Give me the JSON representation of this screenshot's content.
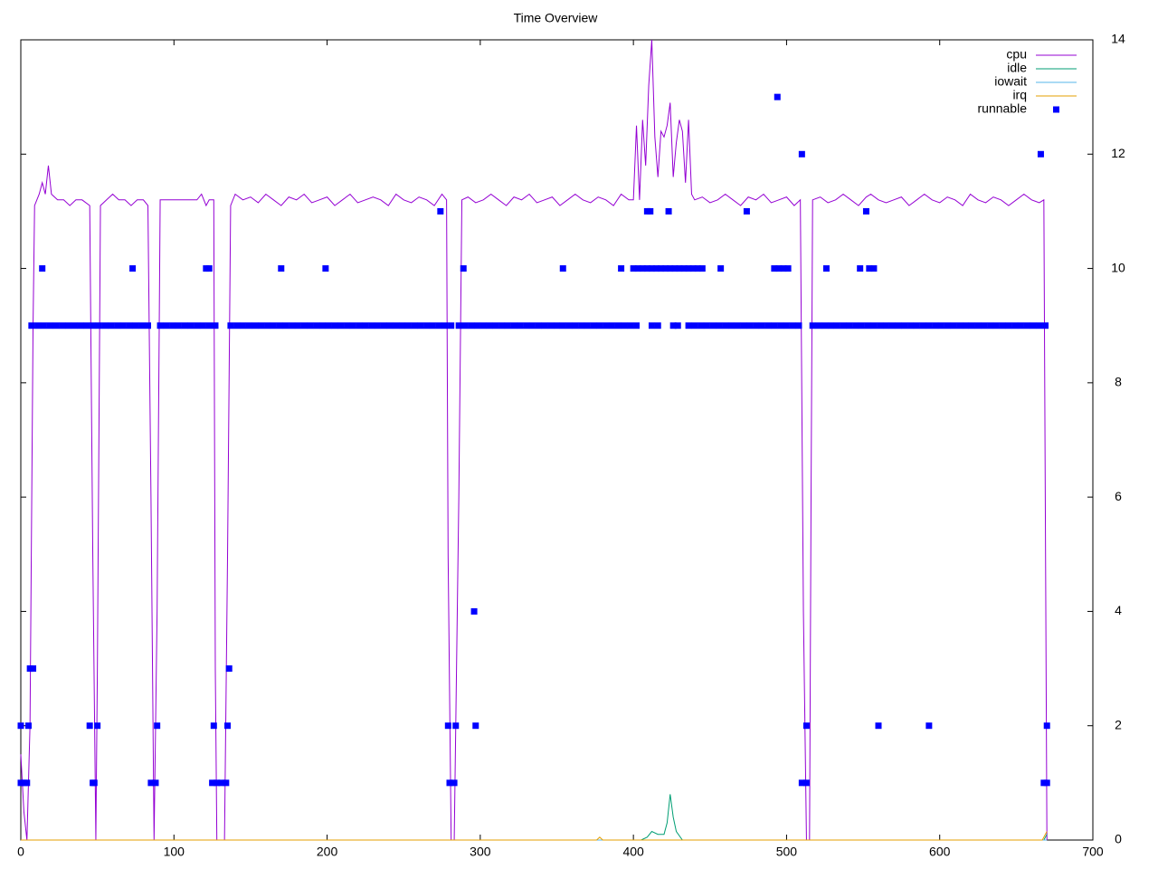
{
  "chart_data": {
    "type": "line",
    "title": "Time Overview",
    "xlim": [
      0,
      700
    ],
    "xticks": [
      0,
      100,
      200,
      300,
      400,
      500,
      600,
      700
    ],
    "ylim": [
      0,
      14
    ],
    "yticks": [
      0,
      2,
      4,
      6,
      8,
      10,
      12,
      14
    ],
    "y_axis_side": "right",
    "grid": false,
    "legend": "top right",
    "series": [
      {
        "name": "cpu",
        "color": "#9400d3",
        "x": [
          0,
          2,
          4,
          6,
          8,
          9,
          12,
          14,
          16,
          18,
          20,
          24,
          28,
          32,
          36,
          40,
          45,
          47,
          49,
          50,
          52,
          56,
          60,
          64,
          68,
          72,
          76,
          80,
          83,
          85,
          87,
          89,
          91,
          95,
          100,
          105,
          110,
          115,
          118,
          121,
          123,
          126,
          127,
          128,
          133,
          135,
          137,
          140,
          145,
          150,
          155,
          160,
          165,
          170,
          175,
          180,
          185,
          190,
          195,
          200,
          205,
          210,
          215,
          220,
          225,
          230,
          235,
          240,
          245,
          250,
          255,
          260,
          265,
          270,
          275,
          278,
          279,
          281,
          283,
          286,
          288,
          292,
          297,
          302,
          307,
          312,
          317,
          322,
          327,
          332,
          337,
          342,
          347,
          352,
          357,
          362,
          367,
          372,
          377,
          382,
          387,
          392,
          397,
          400,
          402,
          404,
          406,
          408,
          410,
          412,
          414,
          416,
          418,
          420,
          422,
          424,
          426,
          428,
          430,
          432,
          434,
          436,
          438,
          440,
          445,
          450,
          455,
          460,
          465,
          470,
          475,
          480,
          485,
          490,
          495,
          500,
          505,
          509,
          511,
          513,
          515,
          516,
          517,
          522,
          527,
          532,
          537,
          542,
          547,
          552,
          555,
          560,
          565,
          570,
          575,
          580,
          585,
          590,
          595,
          600,
          605,
          610,
          615,
          620,
          625,
          630,
          635,
          640,
          645,
          650,
          655,
          660,
          665,
          668,
          670
        ],
        "values": [
          1.5,
          0.5,
          0,
          2,
          9,
          11.1,
          11.3,
          11.5,
          11.3,
          11.8,
          11.3,
          11.2,
          11.2,
          11.1,
          11.2,
          11.2,
          11.1,
          5,
          0,
          3,
          11.1,
          11.2,
          11.3,
          11.2,
          11.2,
          11.1,
          11.2,
          11.2,
          11.1,
          6,
          0,
          4,
          11.2,
          11.2,
          11.2,
          11.2,
          11.2,
          11.2,
          11.3,
          11.1,
          11.2,
          11.2,
          3,
          0,
          0,
          5,
          11.1,
          11.3,
          11.2,
          11.25,
          11.15,
          11.3,
          11.2,
          11.1,
          11.25,
          11.2,
          11.3,
          11.15,
          11.2,
          11.25,
          11.1,
          11.2,
          11.3,
          11.15,
          11.2,
          11.25,
          11.2,
          11.1,
          11.3,
          11.2,
          11.15,
          11.25,
          11.2,
          11.1,
          11.3,
          11.2,
          5,
          0,
          0,
          6,
          11.2,
          11.25,
          11.15,
          11.2,
          11.3,
          11.2,
          11.1,
          11.25,
          11.2,
          11.3,
          11.15,
          11.2,
          11.25,
          11.1,
          11.2,
          11.3,
          11.2,
          11.15,
          11.25,
          11.2,
          11.1,
          11.3,
          11.2,
          11.2,
          12.5,
          11.2,
          12.6,
          11.8,
          13.2,
          14,
          12.3,
          11.6,
          12.4,
          12.3,
          12.5,
          12.9,
          11.6,
          12.2,
          12.6,
          12.4,
          11.5,
          12.6,
          11.3,
          11.2,
          11.25,
          11.15,
          11.2,
          11.3,
          11.2,
          11.1,
          11.25,
          11.2,
          11.3,
          11.15,
          11.2,
          11.25,
          11.1,
          11.2,
          4,
          0,
          0,
          6,
          11.2,
          11.25,
          11.15,
          11.2,
          11.3,
          11.2,
          11.1,
          11.25,
          11.3,
          11.2,
          11.15,
          11.2,
          11.25,
          11.1,
          11.2,
          11.3,
          11.2,
          11.15,
          11.25,
          11.2,
          11.1,
          11.3,
          11.2,
          11.15,
          11.25,
          11.2,
          11.1,
          11.2,
          11.3,
          11.2,
          11.15,
          11.2,
          0
        ]
      },
      {
        "name": "idle",
        "color": "#009e73",
        "x": [
          0,
          405,
          409,
          412,
          416,
          420,
          422,
          424,
          426,
          428,
          432,
          668,
          670
        ],
        "values": [
          0,
          0,
          0.05,
          0.15,
          0.1,
          0.1,
          0.3,
          0.8,
          0.4,
          0.15,
          0,
          0,
          0.1
        ]
      },
      {
        "name": "iowait",
        "color": "#56b4e9",
        "x": [
          0,
          670
        ],
        "values": [
          0,
          0
        ]
      },
      {
        "name": "irq",
        "color": "#e69f00",
        "x": [
          0,
          376,
          378,
          380,
          667,
          670
        ],
        "values": [
          0,
          0,
          0.05,
          0,
          0,
          0.15
        ]
      },
      {
        "name": "runnable",
        "color": "#0000ff",
        "marker": "square",
        "x": [
          7,
          11,
          15,
          19,
          23,
          27,
          31,
          35,
          39,
          43,
          47,
          51,
          55,
          59,
          63,
          67,
          71,
          75,
          79,
          83,
          91,
          95,
          99,
          103,
          107,
          111,
          115,
          119,
          123,
          127,
          137,
          141,
          145,
          149,
          153,
          157,
          161,
          165,
          169,
          173,
          177,
          181,
          185,
          189,
          193,
          197,
          201,
          205,
          209,
          213,
          217,
          221,
          225,
          229,
          233,
          237,
          241,
          245,
          249,
          253,
          257,
          261,
          265,
          269,
          273,
          277,
          281,
          286,
          290,
          294,
          298,
          302,
          306,
          310,
          314,
          318,
          322,
          326,
          330,
          334,
          338,
          342,
          346,
          350,
          354,
          358,
          362,
          366,
          370,
          374,
          378,
          382,
          386,
          390,
          394,
          398,
          402,
          412,
          416,
          426,
          429,
          436,
          440,
          444,
          448,
          452,
          456,
          460,
          464,
          468,
          472,
          476,
          480,
          484,
          488,
          492,
          496,
          500,
          504,
          508,
          517,
          521,
          525,
          529,
          533,
          537,
          541,
          545,
          549,
          553,
          557,
          561,
          565,
          569,
          573,
          577,
          581,
          585,
          589,
          593,
          597,
          601,
          605,
          609,
          613,
          617,
          621,
          625,
          629,
          633,
          637,
          641,
          645,
          649,
          653,
          657,
          661,
          665,
          669,
          0,
          2,
          4,
          47,
          48,
          85,
          88,
          125,
          128,
          131,
          134,
          280,
          283,
          510,
          513,
          668,
          670,
          0,
          5,
          45,
          50,
          89,
          126,
          135,
          279,
          284,
          297,
          513,
          560,
          593,
          670,
          6,
          8,
          136,
          296,
          14,
          73,
          121,
          123,
          170,
          199,
          289,
          354,
          392,
          400,
          403,
          406,
          409,
          412,
          415,
          418,
          421,
          424,
          427,
          430,
          433,
          436,
          439,
          442,
          445,
          457,
          492,
          495,
          498,
          501,
          526,
          548,
          554,
          557,
          274,
          409,
          411,
          423,
          474,
          552,
          510,
          666,
          494
        ],
        "values": [
          9,
          9,
          9,
          9,
          9,
          9,
          9,
          9,
          9,
          9,
          9,
          9,
          9,
          9,
          9,
          9,
          9,
          9,
          9,
          9,
          9,
          9,
          9,
          9,
          9,
          9,
          9,
          9,
          9,
          9,
          9,
          9,
          9,
          9,
          9,
          9,
          9,
          9,
          9,
          9,
          9,
          9,
          9,
          9,
          9,
          9,
          9,
          9,
          9,
          9,
          9,
          9,
          9,
          9,
          9,
          9,
          9,
          9,
          9,
          9,
          9,
          9,
          9,
          9,
          9,
          9,
          9,
          9,
          9,
          9,
          9,
          9,
          9,
          9,
          9,
          9,
          9,
          9,
          9,
          9,
          9,
          9,
          9,
          9,
          9,
          9,
          9,
          9,
          9,
          9,
          9,
          9,
          9,
          9,
          9,
          9,
          9,
          9,
          9,
          9,
          9,
          9,
          9,
          9,
          9,
          9,
          9,
          9,
          9,
          9,
          9,
          9,
          9,
          9,
          9,
          9,
          9,
          9,
          9,
          9,
          9,
          9,
          9,
          9,
          9,
          9,
          9,
          9,
          9,
          9,
          9,
          9,
          9,
          9,
          9,
          9,
          9,
          9,
          9,
          9,
          9,
          9,
          9,
          9,
          9,
          9,
          9,
          9,
          9,
          9,
          9,
          9,
          9,
          9,
          9,
          9,
          9,
          9,
          9,
          1,
          1,
          1,
          1,
          1,
          1,
          1,
          1,
          1,
          1,
          1,
          1,
          1,
          1,
          1,
          1,
          1,
          2,
          2,
          2,
          2,
          2,
          2,
          2,
          2,
          2,
          2,
          2,
          2,
          2,
          2,
          3,
          3,
          3,
          4,
          10,
          10,
          10,
          10,
          10,
          10,
          10,
          10,
          10,
          10,
          10,
          10,
          10,
          10,
          10,
          10,
          10,
          10,
          10,
          10,
          10,
          10,
          10,
          10,
          10,
          10,
          10,
          10,
          10,
          10,
          10,
          10,
          10,
          10,
          11,
          11,
          11,
          11,
          11,
          11,
          12,
          12,
          13
        ]
      }
    ]
  }
}
